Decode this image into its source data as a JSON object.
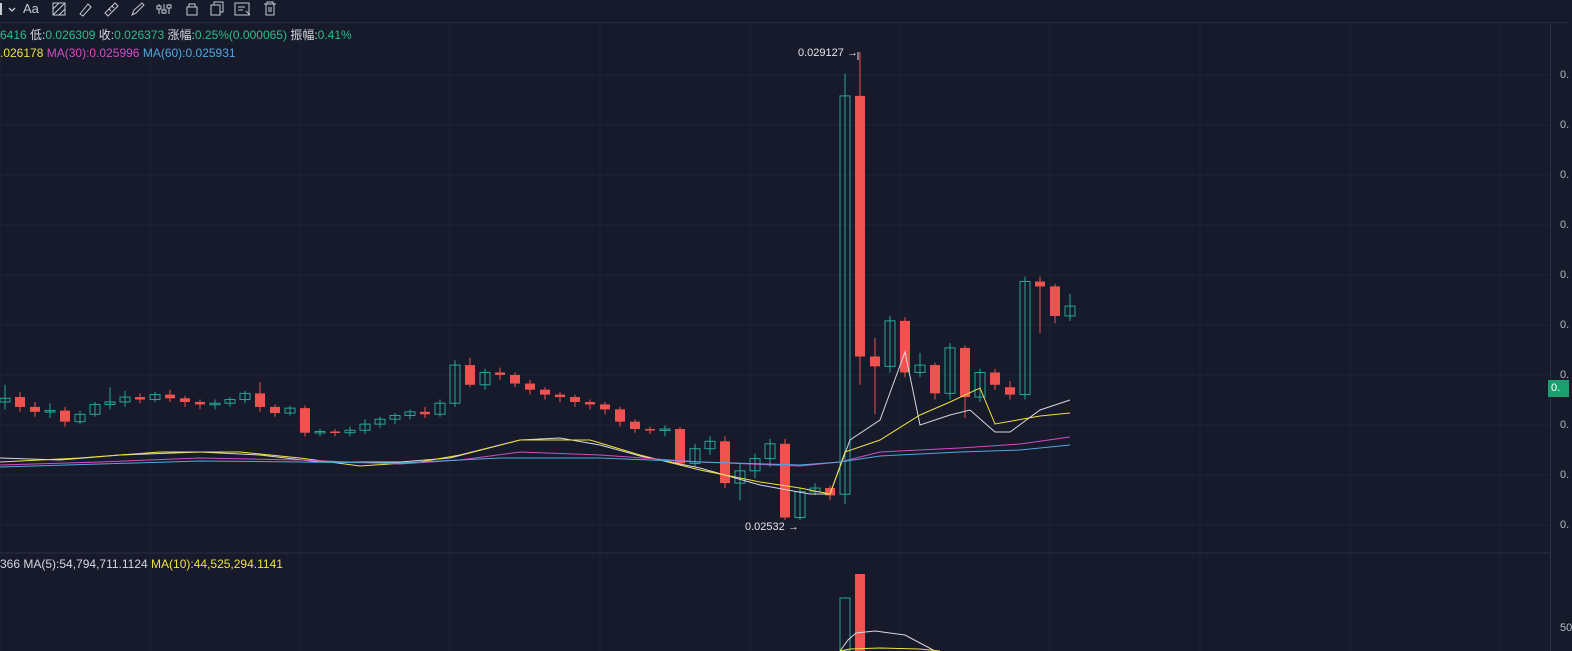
{
  "toolbar": {
    "tools": [
      {
        "name": "cursor-dropdown-icon",
        "label": ""
      },
      {
        "name": "text-tool-icon",
        "label": "Aa"
      },
      {
        "name": "pattern-tool-icon",
        "label": ""
      },
      {
        "name": "brush-tool-icon",
        "label": ""
      },
      {
        "name": "ruler-tool-icon",
        "label": ""
      },
      {
        "name": "pen-tool-icon",
        "label": ""
      },
      {
        "name": "adjust-tool-icon",
        "label": ""
      },
      {
        "name": "lock-tool-icon",
        "label": ""
      },
      {
        "name": "copy-tool-icon",
        "label": ""
      },
      {
        "name": "hide-tool-icon",
        "label": ""
      },
      {
        "name": "delete-tool-icon",
        "label": ""
      }
    ]
  },
  "info": {
    "high_partial": "6416",
    "low_label": "低:",
    "low_value": "0.026309",
    "close_label": "收:",
    "close_value": "0.026373",
    "change_label": "涨幅:",
    "change_value": "0.25%(0.000065)",
    "amplitude_label": "振幅:",
    "amplitude_value": "0.41%"
  },
  "ma": {
    "ma10_partial": ".026178",
    "ma30_label": "MA(30):",
    "ma30_value": "0.025996",
    "ma60_label": "MA(60):",
    "ma60_value": "0.025931"
  },
  "volume_info": {
    "vol_partial": "366",
    "ma5_label": "MA(5):",
    "ma5_value": "54,794,711.1124",
    "ma10_label": "MA(10):",
    "ma10_value": "44,525,294.1141"
  },
  "markers": {
    "high": "0.029127",
    "low": "0.02532"
  },
  "axis": {
    "price_labels": [
      "0.",
      "0.",
      "0.",
      "0.",
      "0.",
      "0.",
      "0.",
      "0.",
      "0.",
      "0."
    ],
    "volume_label": "50",
    "current_price_tag": "0."
  },
  "colors": {
    "background": "#161a2b",
    "up": "#26a69a",
    "down": "#ef5350",
    "ma10": "#f0e040",
    "ma30": "#d24fc4",
    "ma60": "#4fa8e0",
    "ma5": "#d5d8de"
  }
}
